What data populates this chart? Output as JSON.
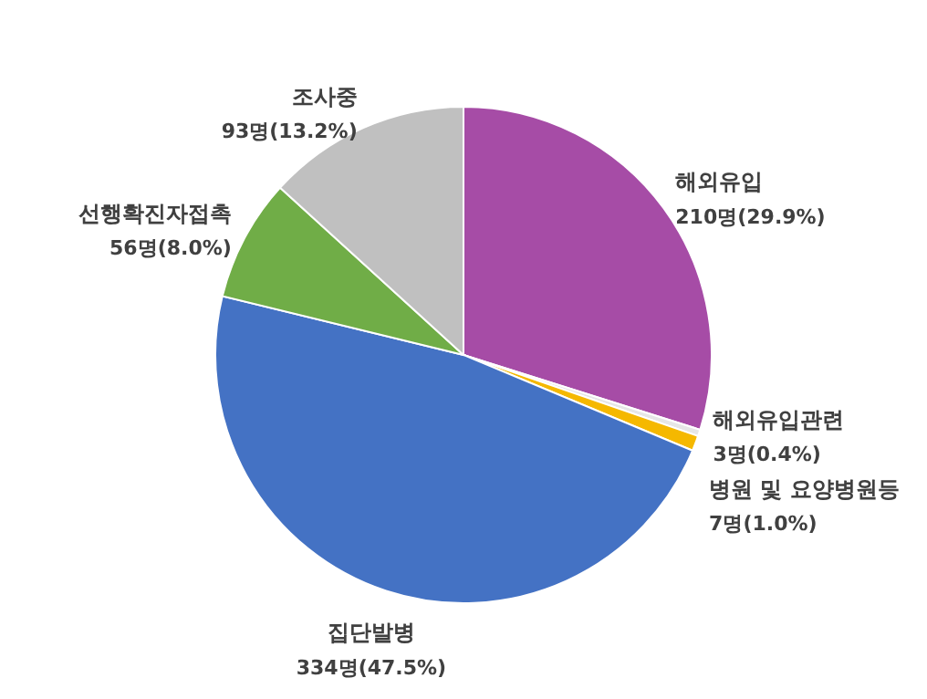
{
  "chart_data": {
    "type": "pie",
    "categories": [
      "해외유입",
      "해외유입관련",
      "병원 및 요양병원등",
      "집단발병",
      "선행확진자접촉",
      "조사중"
    ],
    "values": [
      210,
      3,
      7,
      334,
      56,
      93
    ],
    "colors": [
      "#a64ca6",
      "#e6e6e6",
      "#f5b800",
      "#4472c4",
      "#70ad47",
      "#c0c0c0"
    ],
    "value_labels": [
      "210명(29.9%)",
      "3명(0.4%)",
      "7명(1.0%)",
      "334명(47.5%)",
      "56명(8.0%)",
      "93명(13.2%)"
    ],
    "legend": false
  }
}
